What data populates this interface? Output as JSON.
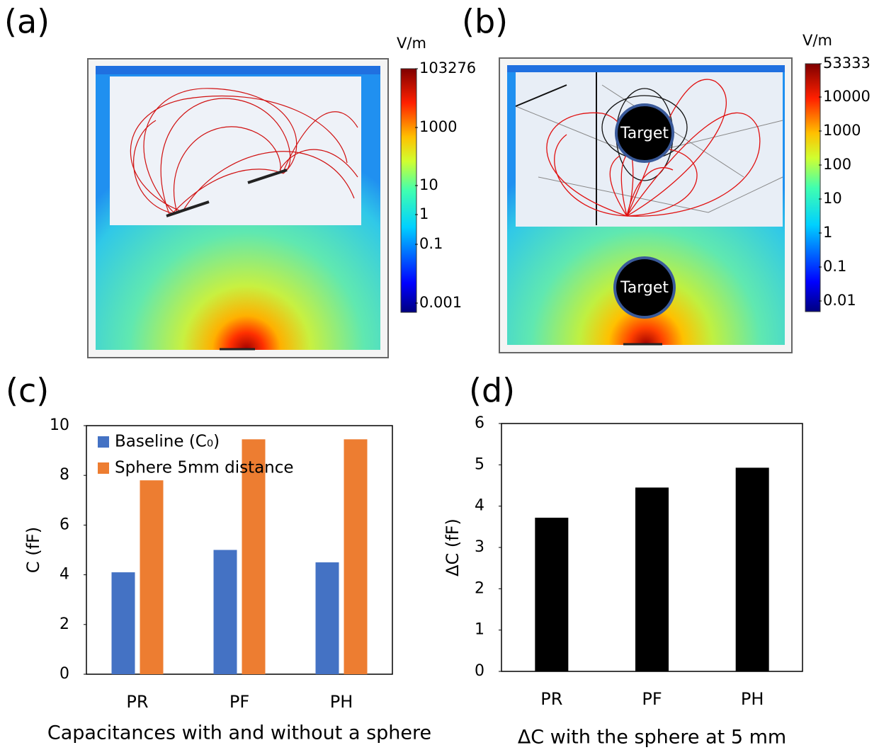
{
  "panels": [
    {
      "label": "(a)",
      "unit": "V/m",
      "colorbar_ticks": [
        103276,
        1000,
        10,
        1,
        0.1,
        0.001
      ]
    },
    {
      "label": "(b)",
      "unit": "V/m",
      "colorbar_ticks": [
        53333,
        10000,
        1000,
        100,
        10,
        1,
        0.1,
        0.01
      ],
      "targets": [
        "Target",
        "Target"
      ]
    }
  ],
  "chart_data": [
    {
      "type": "bar",
      "panel_label": "(c)",
      "xlabel": "Capacitances with and without a sphere",
      "ylabel": "C (fF)",
      "categories": [
        "PR",
        "PF",
        "PH"
      ],
      "series": [
        {
          "name": "Baseline (C₀)",
          "color": "#4472c4",
          "values": [
            4.1,
            5.0,
            4.5
          ]
        },
        {
          "name": "Sphere 5mm distance",
          "color": "#ed7d31",
          "values": [
            7.8,
            9.45,
            9.45
          ]
        }
      ],
      "ylim": [
        0,
        10
      ],
      "yticks": [
        0,
        2,
        4,
        6,
        8,
        10
      ],
      "legend": "upper left"
    },
    {
      "type": "bar",
      "panel_label": "(d)",
      "xlabel": "ΔC with the sphere at 5 mm",
      "ylabel": "ΔC (fF)",
      "categories": [
        "PR",
        "PF",
        "PH"
      ],
      "values": [
        3.72,
        4.45,
        4.93
      ],
      "color": "#000000",
      "ylim": [
        0,
        6
      ],
      "yticks": [
        0,
        1,
        2,
        3,
        4,
        5,
        6
      ]
    }
  ]
}
